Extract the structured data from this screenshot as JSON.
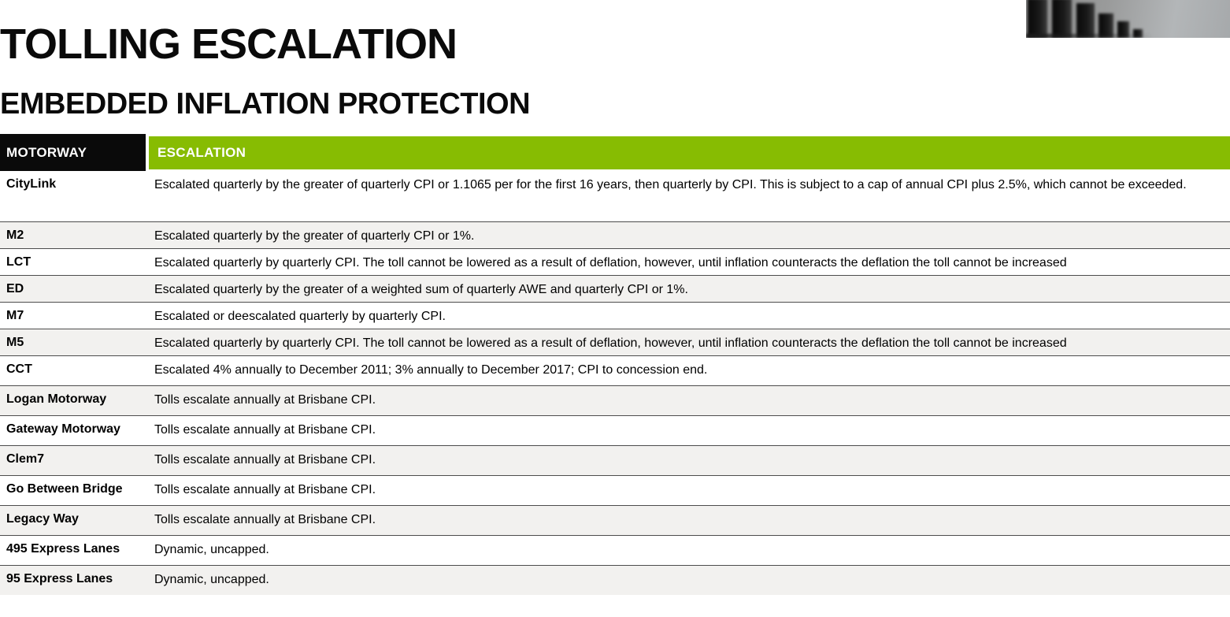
{
  "page": {
    "title": "TOLLING ESCALATION",
    "subtitle": "EMBEDDED INFLATION PROTECTION"
  },
  "decor": {
    "header_image": "grayscale-declining-bars-photo"
  },
  "colors": {
    "accent_green": "#87BC02",
    "header_black": "#0A0A0A",
    "row_alt_gray": "#F2F1EF",
    "divider_gray": "#4D4D4D"
  },
  "table": {
    "columns": [
      "MOTORWAY",
      "ESCALATION"
    ],
    "rows": [
      {
        "motorway": "CityLink",
        "escalation": "Escalated quarterly by the greater of quarterly CPI or 1.1065 per for the first 16 years, then quarterly by CPI. This is subject to a cap of annual CPI plus 2.5%, which cannot be exceeded."
      },
      {
        "motorway": "M2",
        "escalation": "Escalated quarterly by the greater of quarterly CPI or 1%."
      },
      {
        "motorway": "LCT",
        "escalation": "Escalated quarterly by quarterly CPI. The toll cannot be lowered as a result of deflation, however, until inflation counteracts the deflation the toll cannot be increased"
      },
      {
        "motorway": "ED",
        "escalation": "Escalated quarterly by the greater of a weighted sum of quarterly AWE and quarterly CPI or 1%."
      },
      {
        "motorway": "M7",
        "escalation": "Escalated or deescalated quarterly by quarterly CPI."
      },
      {
        "motorway": "M5",
        "escalation": "Escalated quarterly by quarterly CPI. The toll cannot be lowered as a result of deflation, however, until inflation counteracts the deflation the toll cannot be increased"
      },
      {
        "motorway": "CCT",
        "escalation": "Escalated 4% annually to December 2011; 3% annually to December 2017; CPI to concession end."
      },
      {
        "motorway": "Logan Motorway",
        "escalation": "Tolls escalate annually at Brisbane CPI."
      },
      {
        "motorway": "Gateway Motorway",
        "escalation": "Tolls escalate annually at Brisbane CPI."
      },
      {
        "motorway": "Clem7",
        "escalation": "Tolls escalate annually at Brisbane CPI."
      },
      {
        "motorway": "Go Between Bridge",
        "escalation": "Tolls escalate annually at Brisbane CPI."
      },
      {
        "motorway": "Legacy Way",
        "escalation": "Tolls escalate annually at Brisbane CPI."
      },
      {
        "motorway": "495 Express Lanes",
        "escalation": "Dynamic, uncapped."
      },
      {
        "motorway": "95 Express Lanes",
        "escalation": "Dynamic, uncapped."
      }
    ]
  }
}
